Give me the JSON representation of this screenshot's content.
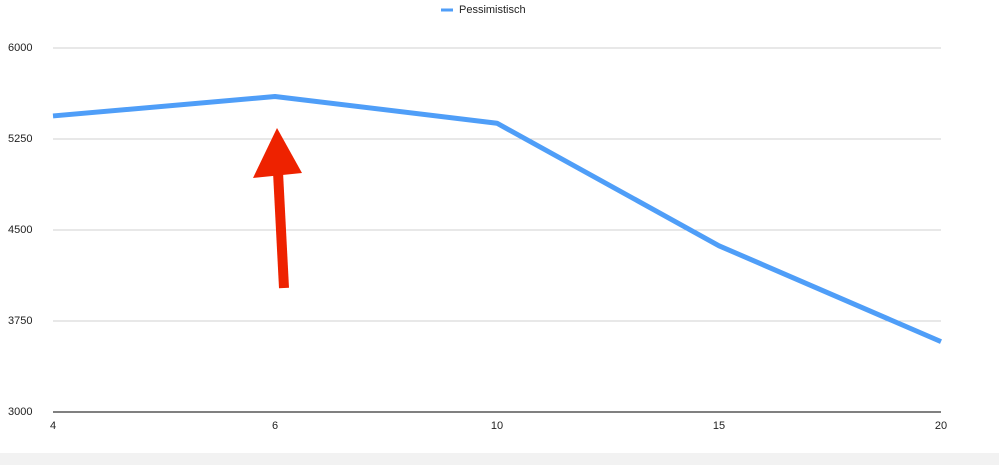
{
  "chart_data": {
    "type": "line",
    "categories": [
      "4",
      "6",
      "10",
      "15",
      "20"
    ],
    "series": [
      {
        "name": "Pessimistisch",
        "color": "#4f9ef8",
        "values": [
          5440,
          5600,
          5380,
          4370,
          3580
        ]
      }
    ],
    "ylim": [
      3000,
      6000
    ],
    "yticks": [
      3000,
      3750,
      4500,
      5250,
      6000
    ],
    "grid": true,
    "legend": "top"
  }
}
